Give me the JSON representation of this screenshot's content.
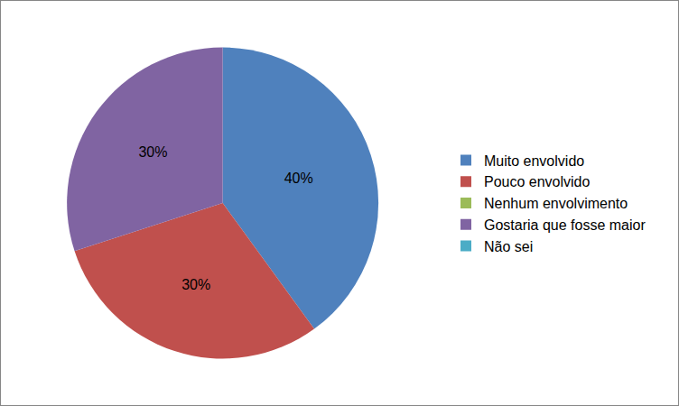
{
  "chart_data": {
    "type": "pie",
    "categories": [
      "Muito envolvido",
      "Pouco envolvido",
      "Nenhum envolvimento",
      "Gostaria que fosse maior",
      "Não sei"
    ],
    "values": [
      40,
      30,
      0,
      30,
      0
    ],
    "value_labels": [
      "40%",
      "30%",
      null,
      "30%",
      null
    ],
    "colors": [
      "#4f81bd",
      "#c0504d",
      "#9bbb59",
      "#8064a2",
      "#4bacc6"
    ],
    "data_labels": true,
    "legend": "right"
  }
}
